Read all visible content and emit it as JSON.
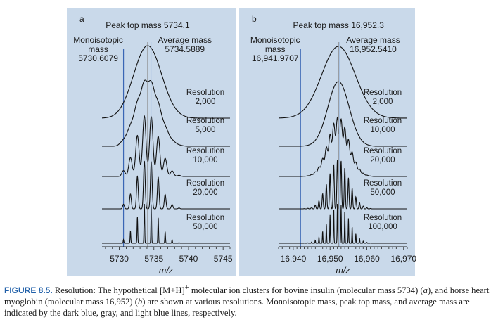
{
  "colors": {
    "panel_bg": "#c9d9ea",
    "trace": "#111111",
    "monoisotopic_line": "#3a66b5",
    "peak_top_line": "#8a8a8a",
    "average_line": "#a9c3e3",
    "caption_label": "#1f5fa8"
  },
  "caption": {
    "label": "FIGURE 8.5.",
    "html": " Resolution: The hypothetical [M+H]<sup>+</sup> molecular ion clusters for bovine insulin (molecular mass 5734) (<i>a</i>), and horse heart myoglobin (molecular mass 16,952) (<i>b</i>) are shown at various resolutions. Monoisotopic mass, peak top mass, and average mass are indicated by the dark blue, gray, and light blue lines, respectively."
  },
  "chart_data": [
    {
      "type": "line",
      "panel_letter": "a",
      "peak_top_label": "Peak top mass 5734.1",
      "monoisotopic": {
        "label_lines": [
          "Monoisotopic",
          "mass",
          "5730.6079"
        ],
        "value": 5730.6079
      },
      "average": {
        "label_lines": [
          "Average mass",
          "5734.5889"
        ],
        "value": 5734.5889
      },
      "peak_top_value": 5734.1,
      "xlabel": "m/z",
      "xlim": [
        5727.5,
        5746
      ],
      "xticks": [
        5730,
        5735,
        5740,
        5745
      ],
      "xtick_labels": [
        "5730",
        "5735",
        "5740",
        "5745"
      ],
      "isotope_spacing": 1.003,
      "envelope_sigma": 1.6,
      "series": [
        {
          "name_lines": [
            "Resolution",
            "50,000"
          ],
          "resolution": 50000
        },
        {
          "name_lines": [
            "Resolution",
            "20,000"
          ],
          "resolution": 20000
        },
        {
          "name_lines": [
            "Resolution",
            "10,000"
          ],
          "resolution": 10000
        },
        {
          "name_lines": [
            "Resolution",
            "5,000"
          ],
          "resolution": 5000
        },
        {
          "name_lines": [
            "Resolution",
            "2,000"
          ],
          "resolution": 2000
        }
      ]
    },
    {
      "type": "line",
      "panel_letter": "b",
      "peak_top_label": "Peak top mass 16,952.3",
      "monoisotopic": {
        "label_lines": [
          "Monoisotopic",
          "mass",
          "16,941.9707"
        ],
        "value": 16941.9707
      },
      "average": {
        "label_lines": [
          "Average mass",
          "16,952.5410"
        ],
        "value": 16952.541
      },
      "peak_top_value": 16952.3,
      "xlabel": "m/z",
      "xlim": [
        16936,
        16971
      ],
      "xticks": [
        16940,
        16950,
        16960,
        16970
      ],
      "xtick_labels": [
        "16,940",
        "16,950",
        "16,960",
        "16,970"
      ],
      "isotope_spacing": 1.003,
      "envelope_sigma": 2.8,
      "series": [
        {
          "name_lines": [
            "Resolution",
            "100,000"
          ],
          "resolution": 100000
        },
        {
          "name_lines": [
            "Resolution",
            "50,000"
          ],
          "resolution": 50000
        },
        {
          "name_lines": [
            "Resolution",
            "20,000"
          ],
          "resolution": 20000
        },
        {
          "name_lines": [
            "Resolution",
            "10,000"
          ],
          "resolution": 10000
        },
        {
          "name_lines": [
            "Resolution",
            "2,000"
          ],
          "resolution": 2000
        }
      ]
    }
  ]
}
